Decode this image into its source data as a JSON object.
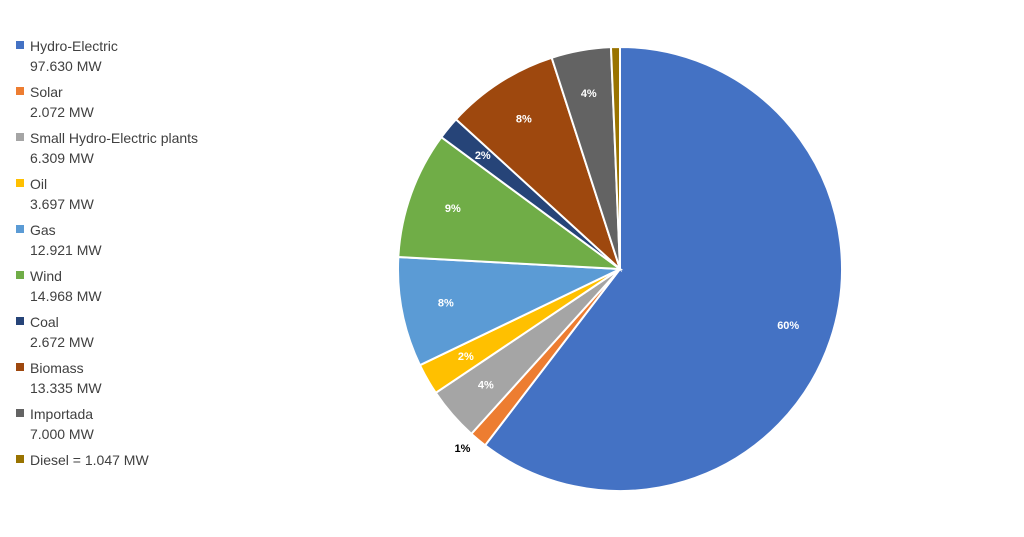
{
  "chart_data": {
    "type": "pie",
    "title": "",
    "legend_position": "left",
    "slices": [
      {
        "label": "Hydro-Electric\n97.630 MW",
        "value": 97.63,
        "percent_label": "60%",
        "color": "#4472C4",
        "label_color": "#ffffff"
      },
      {
        "label": "Solar\n2.072 MW",
        "value": 2.072,
        "percent_label": "1%",
        "color": "#ED7D31",
        "label_color": "#000000",
        "label_outside": true
      },
      {
        "label": "Small Hydro-Electric plants\n6.309 MW",
        "value": 6.309,
        "percent_label": "4%",
        "color": "#A5A5A5",
        "label_color": "#ffffff"
      },
      {
        "label": "Oil\n3.697 MW",
        "value": 3.697,
        "percent_label": "2%",
        "color": "#FFC000",
        "label_color": "#ffffff"
      },
      {
        "label": "Gas\n12.921 MW",
        "value": 12.921,
        "percent_label": "8%",
        "color": "#5B9BD5",
        "label_color": "#ffffff"
      },
      {
        "label": "Wind\n14.968 MW",
        "value": 14.968,
        "percent_label": "9%",
        "color": "#70AD47",
        "label_color": "#ffffff"
      },
      {
        "label": "Coal\n2.672 MW",
        "value": 2.672,
        "percent_label": "2%",
        "color": "#264478",
        "label_color": "#ffffff"
      },
      {
        "label": "Biomass\n13.335 MW",
        "value": 13.335,
        "percent_label": "8%",
        "color": "#9E480E",
        "label_color": "#ffffff"
      },
      {
        "label": "Importada\n7.000 MW",
        "value": 7.0,
        "percent_label": "4%",
        "color": "#636363",
        "label_color": "#ffffff"
      },
      {
        "label": "Diesel = 1.047 MW",
        "value": 1.047,
        "percent_label": "",
        "color": "#997300",
        "label_color": "#ffffff"
      }
    ]
  }
}
